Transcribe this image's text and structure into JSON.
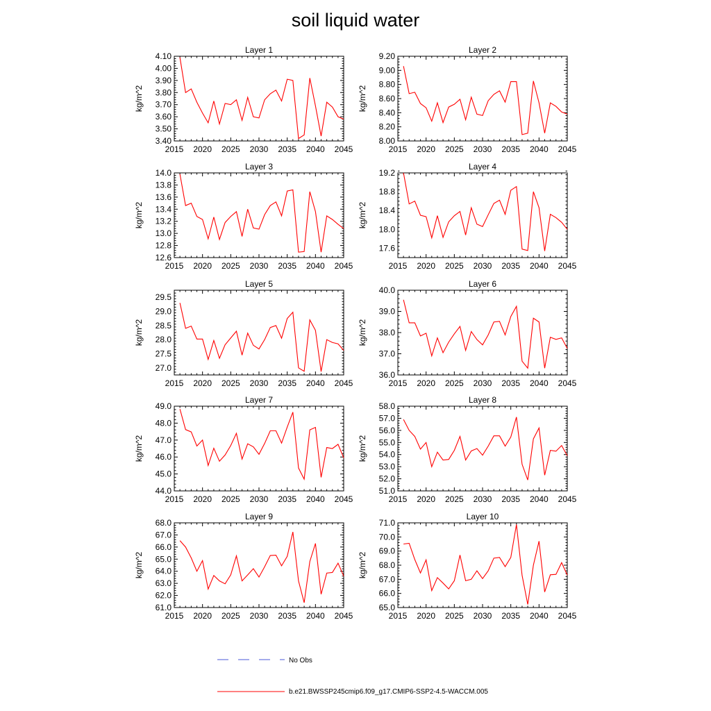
{
  "title": "soil liquid water",
  "chart_data": [
    {
      "type": "line",
      "title": "Layer 1",
      "ylabel": "kg/m^2",
      "xlim": [
        2015,
        2045
      ],
      "xticks": [
        "2015",
        "2020",
        "2025",
        "2030",
        "2035",
        "2040",
        "2045"
      ],
      "ylim": [
        3.4,
        4.1
      ],
      "yticks": [
        "3.40",
        "3.50",
        "3.60",
        "3.70",
        "3.80",
        "3.90",
        "4.00",
        "4.10"
      ],
      "series": [
        {
          "color": "#ff0000",
          "x": [
            2016,
            2017,
            2018,
            2019,
            2020,
            2021,
            2022,
            2023,
            2024,
            2025,
            2026,
            2027,
            2028,
            2029,
            2030,
            2031,
            2032,
            2033,
            2034,
            2035,
            2036,
            2037,
            2038,
            2039,
            2040,
            2041,
            2042,
            2043,
            2044,
            2045
          ],
          "values": [
            4.09,
            3.8,
            3.83,
            3.72,
            3.63,
            3.55,
            3.73,
            3.54,
            3.71,
            3.7,
            3.74,
            3.57,
            3.76,
            3.6,
            3.59,
            3.74,
            3.79,
            3.82,
            3.73,
            3.91,
            3.9,
            3.42,
            3.45,
            3.92,
            3.69,
            3.44,
            3.72,
            3.68,
            3.6,
            3.58
          ]
        }
      ]
    },
    {
      "type": "line",
      "title": "Layer 2",
      "ylabel": "kg/m^2",
      "xlim": [
        2015,
        2045
      ],
      "xticks": [
        "2015",
        "2020",
        "2025",
        "2030",
        "2035",
        "2040",
        "2045"
      ],
      "ylim": [
        8.0,
        9.2
      ],
      "yticks": [
        "8.00",
        "8.20",
        "8.40",
        "8.60",
        "8.80",
        "9.00",
        "9.20"
      ],
      "series": [
        {
          "color": "#ff0000",
          "x": [
            2016,
            2017,
            2018,
            2019,
            2020,
            2021,
            2022,
            2023,
            2024,
            2025,
            2026,
            2027,
            2028,
            2029,
            2030,
            2031,
            2032,
            2033,
            2034,
            2035,
            2036,
            2037,
            2038,
            2039,
            2040,
            2041,
            2042,
            2043,
            2044,
            2045
          ],
          "values": [
            9.06,
            8.67,
            8.69,
            8.53,
            8.47,
            8.28,
            8.54,
            8.26,
            8.48,
            8.52,
            8.59,
            8.3,
            8.62,
            8.38,
            8.36,
            8.57,
            8.66,
            8.71,
            8.55,
            8.84,
            8.84,
            8.09,
            8.11,
            8.85,
            8.54,
            8.11,
            8.54,
            8.49,
            8.41,
            8.38
          ]
        }
      ]
    },
    {
      "type": "line",
      "title": "Layer 3",
      "ylabel": "kg/m^2",
      "xlim": [
        2015,
        2045
      ],
      "xticks": [
        "2015",
        "2020",
        "2025",
        "2030",
        "2035",
        "2040",
        "2045"
      ],
      "ylim": [
        12.6,
        14.0
      ],
      "yticks": [
        "12.6",
        "12.8",
        "13.0",
        "13.2",
        "13.4",
        "13.6",
        "13.8",
        "14.0"
      ],
      "series": [
        {
          "color": "#ff0000",
          "x": [
            2016,
            2017,
            2018,
            2019,
            2020,
            2021,
            2022,
            2023,
            2024,
            2025,
            2026,
            2027,
            2028,
            2029,
            2030,
            2031,
            2032,
            2033,
            2034,
            2035,
            2036,
            2037,
            2038,
            2039,
            2040,
            2041,
            2042,
            2043,
            2044,
            2045
          ],
          "values": [
            13.98,
            13.46,
            13.5,
            13.28,
            13.23,
            12.91,
            13.27,
            12.9,
            13.18,
            13.28,
            13.36,
            12.95,
            13.4,
            13.09,
            13.07,
            13.31,
            13.46,
            13.52,
            13.29,
            13.7,
            13.72,
            12.69,
            12.7,
            13.69,
            13.36,
            12.69,
            13.29,
            13.23,
            13.15,
            13.08
          ]
        }
      ]
    },
    {
      "type": "line",
      "title": "Layer 4",
      "ylabel": "kg/m^2",
      "xlim": [
        2015,
        2045
      ],
      "xticks": [
        "2015",
        "2020",
        "2025",
        "2030",
        "2035",
        "2040",
        "2045"
      ],
      "ylim": [
        17.4,
        19.2
      ],
      "yticks": [
        "17.6",
        "18.0",
        "18.4",
        "18.8",
        "19.2"
      ],
      "series": [
        {
          "color": "#ff0000",
          "x": [
            2016,
            2017,
            2018,
            2019,
            2020,
            2021,
            2022,
            2023,
            2024,
            2025,
            2026,
            2027,
            2028,
            2029,
            2030,
            2031,
            2032,
            2033,
            2034,
            2035,
            2036,
            2037,
            2038,
            2039,
            2040,
            2041,
            2042,
            2043,
            2044,
            2045
          ],
          "values": [
            19.2,
            18.54,
            18.6,
            18.3,
            18.27,
            17.82,
            18.29,
            17.83,
            18.16,
            18.29,
            18.38,
            17.88,
            18.46,
            18.11,
            18.06,
            18.31,
            18.55,
            18.62,
            18.32,
            18.83,
            18.91,
            17.58,
            17.55,
            18.8,
            18.46,
            17.54,
            18.32,
            18.25,
            18.15,
            18.0
          ]
        }
      ]
    },
    {
      "type": "line",
      "title": "Layer 5",
      "ylabel": "kg/m^2",
      "xlim": [
        2015,
        2045
      ],
      "xticks": [
        "2015",
        "2020",
        "2025",
        "2030",
        "2035",
        "2040",
        "2045"
      ],
      "ylim": [
        26.75,
        29.75
      ],
      "yticks": [
        "27.0",
        "27.5",
        "28.0",
        "28.5",
        "29.0",
        "29.5"
      ],
      "series": [
        {
          "color": "#ff0000",
          "x": [
            2016,
            2017,
            2018,
            2019,
            2020,
            2021,
            2022,
            2023,
            2024,
            2025,
            2026,
            2027,
            2028,
            2029,
            2030,
            2031,
            2032,
            2033,
            2034,
            2035,
            2036,
            2037,
            2038,
            2039,
            2040,
            2041,
            2042,
            2043,
            2044,
            2045
          ],
          "values": [
            29.3,
            28.4,
            28.48,
            28.02,
            28.02,
            27.3,
            27.97,
            27.34,
            27.82,
            28.06,
            28.3,
            27.45,
            28.23,
            27.8,
            27.67,
            28.0,
            28.43,
            28.5,
            28.05,
            28.75,
            28.97,
            27.0,
            26.88,
            28.7,
            28.33,
            26.87,
            28.0,
            27.9,
            27.85,
            27.62
          ]
        }
      ]
    },
    {
      "type": "line",
      "title": "Layer 6",
      "ylabel": "kg/m^2",
      "xlim": [
        2015,
        2045
      ],
      "xticks": [
        "2015",
        "2020",
        "2025",
        "2030",
        "2035",
        "2040",
        "2045"
      ],
      "ylim": [
        36.0,
        40.0
      ],
      "yticks": [
        "36.0",
        "37.0",
        "38.0",
        "39.0",
        "40.0"
      ],
      "series": [
        {
          "color": "#ff0000",
          "x": [
            2016,
            2017,
            2018,
            2019,
            2020,
            2021,
            2022,
            2023,
            2024,
            2025,
            2026,
            2027,
            2028,
            2029,
            2030,
            2031,
            2032,
            2033,
            2034,
            2035,
            2036,
            2037,
            2038,
            2039,
            2040,
            2041,
            2042,
            2043,
            2044,
            2045
          ],
          "values": [
            39.55,
            38.46,
            38.46,
            37.84,
            37.97,
            36.9,
            37.75,
            37.05,
            37.55,
            37.94,
            38.29,
            37.16,
            38.05,
            37.67,
            37.42,
            37.89,
            38.5,
            38.53,
            37.89,
            38.76,
            39.24,
            36.65,
            36.32,
            38.68,
            38.5,
            36.32,
            37.78,
            37.68,
            37.75,
            37.25
          ]
        }
      ]
    },
    {
      "type": "line",
      "title": "Layer 7",
      "ylabel": "kg/m^2",
      "xlim": [
        2015,
        2045
      ],
      "xticks": [
        "2015",
        "2020",
        "2025",
        "2030",
        "2035",
        "2040",
        "2045"
      ],
      "ylim": [
        44.0,
        49.0
      ],
      "yticks": [
        "44.0",
        "45.0",
        "46.0",
        "47.0",
        "48.0",
        "49.0"
      ],
      "series": [
        {
          "color": "#ff0000",
          "x": [
            2016,
            2017,
            2018,
            2019,
            2020,
            2021,
            2022,
            2023,
            2024,
            2025,
            2026,
            2027,
            2028,
            2029,
            2030,
            2031,
            2032,
            2033,
            2034,
            2035,
            2036,
            2037,
            2038,
            2039,
            2040,
            2041,
            2042,
            2043,
            2044,
            2045
          ],
          "values": [
            48.83,
            47.62,
            47.48,
            46.65,
            47.0,
            45.5,
            46.52,
            45.75,
            46.12,
            46.68,
            47.4,
            45.88,
            46.78,
            46.6,
            46.16,
            46.8,
            47.55,
            47.55,
            46.82,
            47.77,
            48.65,
            45.35,
            44.69,
            47.6,
            47.75,
            44.8,
            46.56,
            46.5,
            46.75,
            45.95
          ]
        }
      ]
    },
    {
      "type": "line",
      "title": "Layer 8",
      "ylabel": "kg/m^2",
      "xlim": [
        2015,
        2045
      ],
      "xticks": [
        "2015",
        "2020",
        "2025",
        "2030",
        "2035",
        "2040",
        "2045"
      ],
      "ylim": [
        51.0,
        58.0
      ],
      "yticks": [
        "51.0",
        "52.0",
        "53.0",
        "54.0",
        "55.0",
        "56.0",
        "57.0",
        "58.0"
      ],
      "series": [
        {
          "color": "#ff0000",
          "x": [
            2016,
            2017,
            2018,
            2019,
            2020,
            2021,
            2022,
            2023,
            2024,
            2025,
            2026,
            2027,
            2028,
            2029,
            2030,
            2031,
            2032,
            2033,
            2034,
            2035,
            2036,
            2037,
            2038,
            2039,
            2040,
            2041,
            2042,
            2043,
            2044,
            2045
          ],
          "values": [
            56.9,
            56.0,
            55.5,
            54.45,
            55.0,
            53.0,
            54.2,
            53.55,
            53.6,
            54.35,
            55.5,
            53.55,
            54.3,
            54.5,
            53.95,
            54.7,
            55.55,
            55.55,
            54.7,
            55.45,
            57.1,
            53.2,
            51.9,
            55.3,
            56.2,
            52.3,
            54.35,
            54.28,
            54.75,
            53.9
          ]
        }
      ]
    },
    {
      "type": "line",
      "title": "Layer 9",
      "ylabel": "kg/m^2",
      "xlim": [
        2015,
        2045
      ],
      "xticks": [
        "2015",
        "2020",
        "2025",
        "2030",
        "2035",
        "2040",
        "2045"
      ],
      "ylim": [
        61.0,
        68.0
      ],
      "yticks": [
        "61.0",
        "62.0",
        "63.0",
        "64.0",
        "65.0",
        "66.0",
        "67.0",
        "68.0"
      ],
      "series": [
        {
          "color": "#ff0000",
          "x": [
            2016,
            2017,
            2018,
            2019,
            2020,
            2021,
            2022,
            2023,
            2024,
            2025,
            2026,
            2027,
            2028,
            2029,
            2030,
            2031,
            2032,
            2033,
            2034,
            2035,
            2036,
            2037,
            2038,
            2039,
            2040,
            2041,
            2042,
            2043,
            2044,
            2045
          ],
          "values": [
            66.53,
            66.0,
            65.1,
            64.0,
            64.88,
            62.53,
            63.65,
            63.2,
            62.96,
            63.7,
            65.27,
            63.2,
            63.7,
            64.21,
            63.52,
            64.37,
            65.3,
            65.33,
            64.45,
            65.23,
            67.25,
            63.2,
            61.4,
            64.8,
            66.3,
            62.1,
            63.85,
            63.9,
            64.67,
            63.6
          ]
        }
      ]
    },
    {
      "type": "line",
      "title": "Layer 10",
      "ylabel": "kg/m^2",
      "xlim": [
        2015,
        2045
      ],
      "xticks": [
        "2015",
        "2020",
        "2025",
        "2030",
        "2035",
        "2040",
        "2045"
      ],
      "ylim": [
        65.0,
        71.0
      ],
      "yticks": [
        "65.0",
        "66.0",
        "67.0",
        "68.0",
        "69.0",
        "70.0",
        "71.0"
      ],
      "series": [
        {
          "color": "#ff0000",
          "x": [
            2016,
            2017,
            2018,
            2019,
            2020,
            2021,
            2022,
            2023,
            2024,
            2025,
            2026,
            2027,
            2028,
            2029,
            2030,
            2031,
            2032,
            2033,
            2034,
            2035,
            2036,
            2037,
            2038,
            2039,
            2040,
            2041,
            2042,
            2043,
            2044,
            2045
          ],
          "values": [
            69.5,
            69.55,
            68.4,
            67.45,
            68.38,
            66.2,
            67.12,
            66.73,
            66.32,
            66.9,
            68.72,
            66.9,
            67.0,
            67.6,
            67.05,
            67.6,
            68.5,
            68.55,
            67.9,
            68.55,
            70.88,
            67.28,
            65.22,
            68.0,
            69.7,
            66.1,
            67.32,
            67.35,
            68.18,
            67.3
          ]
        }
      ]
    }
  ],
  "legend": {
    "entries": [
      {
        "label": "No Obs",
        "color": "#4a5ad8",
        "style": "dashed"
      },
      {
        "label": "b.e21.BWSSP245cmip6.f09_g17.CMIP6-SSP2-4.5-WACCM.005",
        "color": "#ff0000",
        "style": "solid"
      }
    ]
  }
}
